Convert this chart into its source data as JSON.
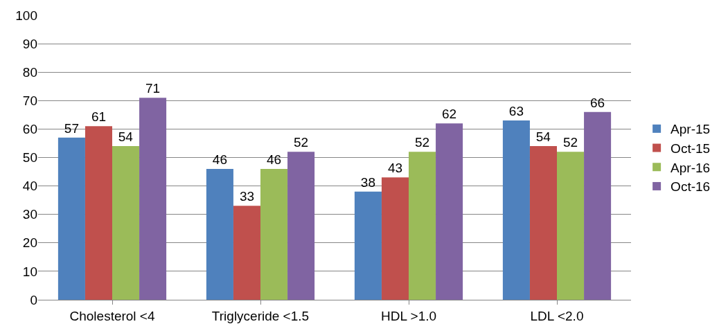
{
  "chart_data": {
    "type": "bar",
    "categories": [
      "Cholesterol <4",
      "Triglyceride <1.5",
      "HDL >1.0",
      "LDL <2.0"
    ],
    "series": [
      {
        "name": "Apr-15",
        "color": "#4f81bd",
        "values": [
          57,
          46,
          38,
          63
        ]
      },
      {
        "name": "Oct-15",
        "color": "#c0504d",
        "values": [
          61,
          33,
          43,
          54
        ]
      },
      {
        "name": "Apr-16",
        "color": "#9bbb59",
        "values": [
          54,
          46,
          52,
          52
        ]
      },
      {
        "name": "Oct-16",
        "color": "#8064a2",
        "values": [
          71,
          52,
          62,
          66
        ]
      }
    ],
    "ylim": [
      0,
      100
    ],
    "yticks": [
      0,
      10,
      20,
      30,
      40,
      50,
      60,
      70,
      80,
      90,
      100
    ],
    "grid": "y",
    "legend": "right",
    "data_labels": true
  }
}
